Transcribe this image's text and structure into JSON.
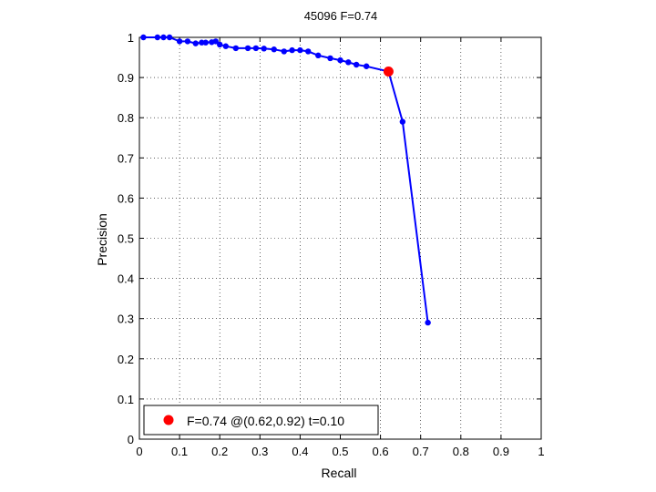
{
  "chart_data": {
    "type": "line",
    "title": "45096 F=0.74",
    "xlabel": "Recall",
    "ylabel": "Precision",
    "xlim": [
      0,
      1
    ],
    "ylim": [
      0,
      1
    ],
    "xticks": [
      "0",
      "0.1",
      "0.2",
      "0.3",
      "0.4",
      "0.5",
      "0.6",
      "0.7",
      "0.8",
      "0.9",
      "1"
    ],
    "yticks": [
      "0",
      "0.1",
      "0.2",
      "0.3",
      "0.4",
      "0.5",
      "0.6",
      "0.7",
      "0.8",
      "0.9",
      "1"
    ],
    "grid": true,
    "legend_position": "bottom-left",
    "series": [
      {
        "color": "#0000ff",
        "x": [
          0.01,
          0.045,
          0.06,
          0.075,
          0.1,
          0.12,
          0.14,
          0.155,
          0.165,
          0.18,
          0.19,
          0.2,
          0.215,
          0.24,
          0.27,
          0.29,
          0.31,
          0.335,
          0.36,
          0.38,
          0.4,
          0.42,
          0.445,
          0.475,
          0.5,
          0.52,
          0.54,
          0.565,
          0.62,
          0.655,
          0.718
        ],
        "y": [
          1.0,
          1.0,
          1.0,
          1.0,
          0.99,
          0.99,
          0.985,
          0.987,
          0.987,
          0.988,
          0.99,
          0.982,
          0.978,
          0.973,
          0.973,
          0.973,
          0.972,
          0.97,
          0.965,
          0.968,
          0.968,
          0.965,
          0.955,
          0.948,
          0.943,
          0.938,
          0.932,
          0.928,
          0.915,
          0.79,
          0.29
        ]
      }
    ],
    "highlight": {
      "color": "#ff0000",
      "x": 0.62,
      "y": 0.915,
      "legend_label": "F=0.74 @(0.62,0.92) t=0.10"
    }
  }
}
